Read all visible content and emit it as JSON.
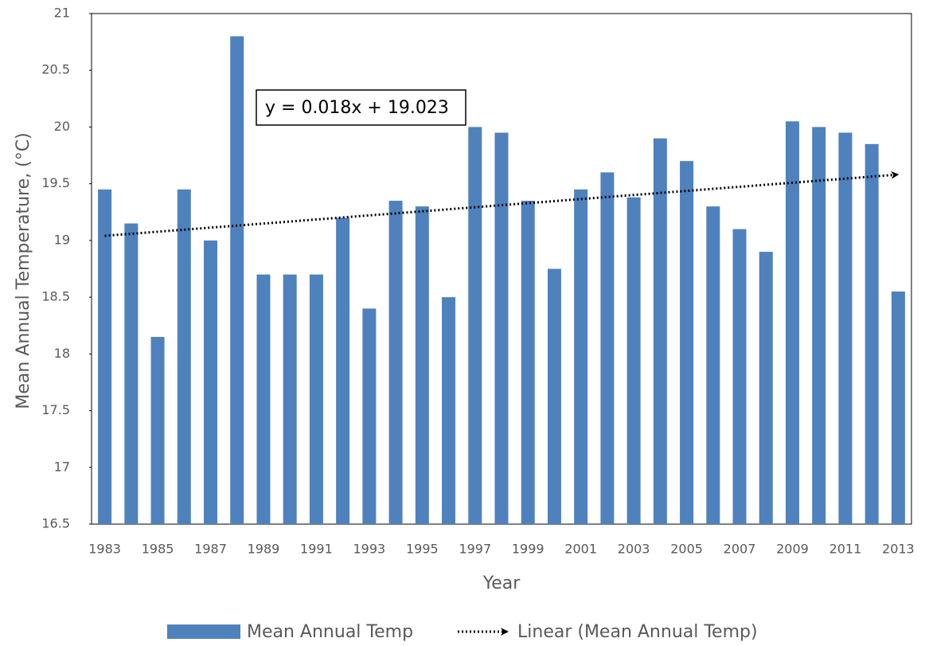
{
  "chart_data": {
    "type": "bar",
    "x_label": "Year",
    "y_label": "Mean Annual Temperature, (°C)",
    "categories": [
      "1983",
      null,
      "1985",
      null,
      "1987",
      null,
      "1989",
      null,
      "1991",
      null,
      "1993",
      null,
      "1995",
      null,
      "1997",
      null,
      "1999",
      null,
      "2001",
      null,
      "2003",
      null,
      "2005",
      null,
      "2007",
      null,
      "2009",
      null,
      "2011",
      null,
      "2013"
    ],
    "series": [
      {
        "name": "Mean Annual Temp",
        "color": "#4f81bd",
        "values": [
          19.45,
          19.15,
          18.15,
          19.45,
          19.0,
          20.8,
          18.7,
          18.7,
          18.7,
          19.2,
          18.4,
          19.35,
          19.3,
          18.5,
          20.0,
          19.95,
          19.35,
          18.75,
          19.45,
          19.6,
          19.38,
          19.9,
          19.7,
          19.3,
          19.1,
          18.9,
          20.05,
          20.0,
          19.95,
          19.85,
          18.55
        ]
      }
    ],
    "trendline": {
      "name": "Linear (Mean Annual Temp)",
      "slope": 0.018,
      "intercept": 19.023,
      "label": "y = 0.018x + 19.023",
      "color": "#000000"
    },
    "ylim": [
      16.5,
      21
    ],
    "yticks": [
      16.5,
      17,
      17.5,
      18,
      18.5,
      19,
      19.5,
      20,
      20.5,
      21
    ],
    "legend": "bottom"
  }
}
